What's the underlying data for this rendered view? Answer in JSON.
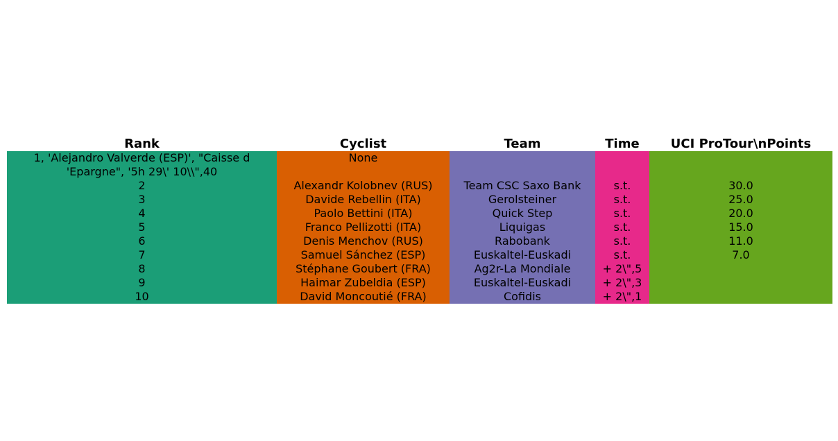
{
  "chart_data": {
    "type": "table",
    "columns": [
      {
        "label": "Rank",
        "color": "#1b9e77"
      },
      {
        "label": "Cyclist",
        "color": "#d95f02"
      },
      {
        "label": "Team",
        "color": "#7570b3"
      },
      {
        "label": "Time",
        "color": "#e7298a"
      },
      {
        "label": "UCI ProTour\\nPoints",
        "color": "#66a61e"
      }
    ],
    "rows": [
      [
        "1, 'Alejandro Valverde (ESP)', \"Caisse d\n'Epargne\", '5h 29\\' 10\\\\\",40",
        "None",
        "",
        "",
        ""
      ],
      [
        "2",
        "Alexandr Kolobnev (RUS)",
        "Team CSC Saxo Bank",
        "s.t.",
        "30.0"
      ],
      [
        "3",
        "Davide Rebellin (ITA)",
        "Gerolsteiner",
        "s.t.",
        "25.0"
      ],
      [
        "4",
        "Paolo Bettini (ITA)",
        "Quick Step",
        "s.t.",
        "20.0"
      ],
      [
        "5",
        "Franco Pellizotti (ITA)",
        "Liquigas",
        "s.t.",
        "15.0"
      ],
      [
        "6",
        "Denis Menchov (RUS)",
        "Rabobank",
        "s.t.",
        "11.0"
      ],
      [
        "7",
        "Samuel Sánchez (ESP)",
        "Euskaltel-Euskadi",
        "s.t.",
        "7.0"
      ],
      [
        "8",
        "Stéphane Goubert (FRA)",
        "Ag2r-La Mondiale",
        "+ 2\\\",5",
        ""
      ],
      [
        "9",
        "Haimar Zubeldia (ESP)",
        "Euskaltel-Euskadi",
        "+ 2\\\",3",
        ""
      ],
      [
        "10",
        "David Moncoutié (FRA)",
        "Cofidis",
        "+ 2\\\",1",
        ""
      ]
    ]
  }
}
